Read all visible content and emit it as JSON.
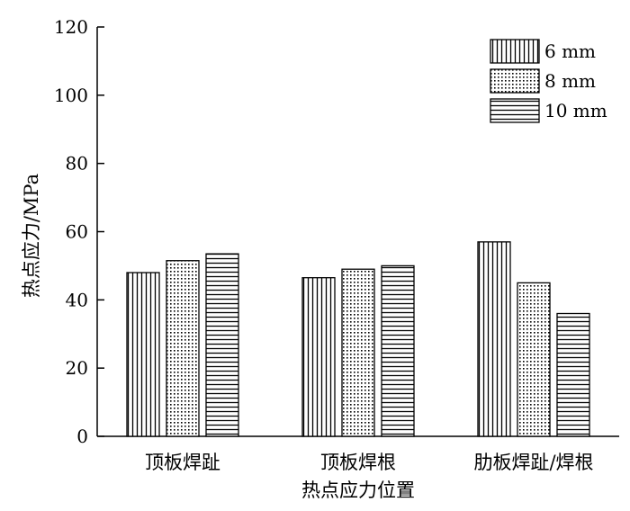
{
  "chart_data": {
    "type": "bar",
    "xlabel": "热点应力位置",
    "ylabel": "热点应力/MPa",
    "categories": [
      "顶板焊趾",
      "顶板焊根",
      "肋板焊趾/焊根"
    ],
    "series": [
      {
        "name": "6 mm",
        "pattern": "vertical-lines",
        "values": [
          48,
          46.5,
          57
        ]
      },
      {
        "name": "8 mm",
        "pattern": "dots",
        "values": [
          51.5,
          49,
          45
        ]
      },
      {
        "name": "10 mm",
        "pattern": "horizontal-lines",
        "values": [
          53.5,
          50,
          36
        ]
      }
    ],
    "ylim": [
      0,
      120
    ],
    "yticks": [
      "0",
      "20",
      "40",
      "60",
      "80",
      "100",
      "120"
    ],
    "grid": false,
    "legend": "top-right",
    "colors": {
      "stroke": "#000000",
      "fill": "#ffffff"
    }
  }
}
